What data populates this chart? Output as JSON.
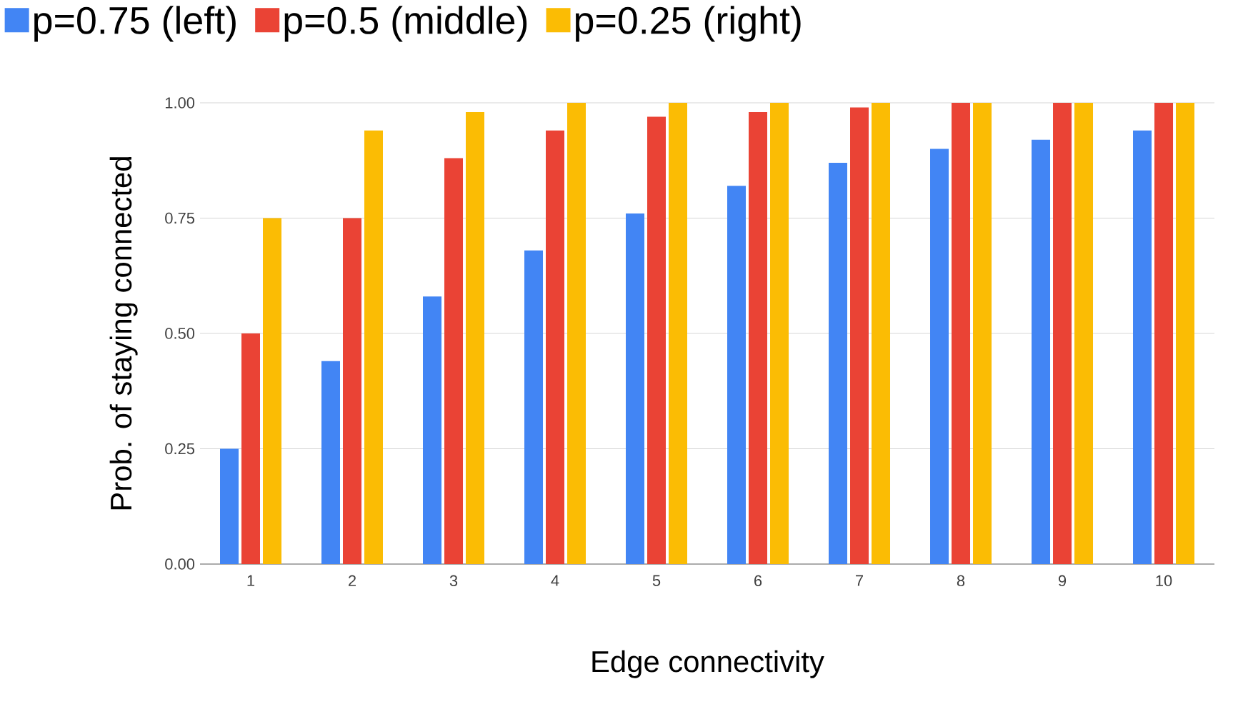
{
  "chart_data": {
    "type": "bar",
    "xlabel": "Edge connectivity",
    "ylabel": "Prob. of staying connected",
    "categories": [
      "1",
      "2",
      "3",
      "4",
      "5",
      "6",
      "7",
      "8",
      "9",
      "10"
    ],
    "series": [
      {
        "name": "p=0.75 (left)",
        "color": "#4285f4",
        "values": [
          0.25,
          0.44,
          0.58,
          0.68,
          0.76,
          0.82,
          0.87,
          0.9,
          0.92,
          0.94
        ]
      },
      {
        "name": "p=0.5 (middle)",
        "color": "#ea4335",
        "values": [
          0.5,
          0.75,
          0.88,
          0.94,
          0.97,
          0.98,
          0.99,
          1.0,
          1.0,
          1.0
        ]
      },
      {
        "name": "p=0.25 (right)",
        "color": "#fbbc04",
        "values": [
          0.75,
          0.94,
          0.98,
          1.0,
          1.0,
          1.0,
          1.0,
          1.0,
          1.0,
          1.0
        ]
      }
    ],
    "ylim": [
      0,
      1
    ],
    "yticks": [
      {
        "value": 0,
        "label": "0.00"
      },
      {
        "value": 0.25,
        "label": "0.25"
      },
      {
        "value": 0.5,
        "label": "0.50"
      },
      {
        "value": 0.75,
        "label": "0.75"
      },
      {
        "value": 1,
        "label": "1.00"
      }
    ],
    "grid": "y",
    "legend": "top"
  }
}
